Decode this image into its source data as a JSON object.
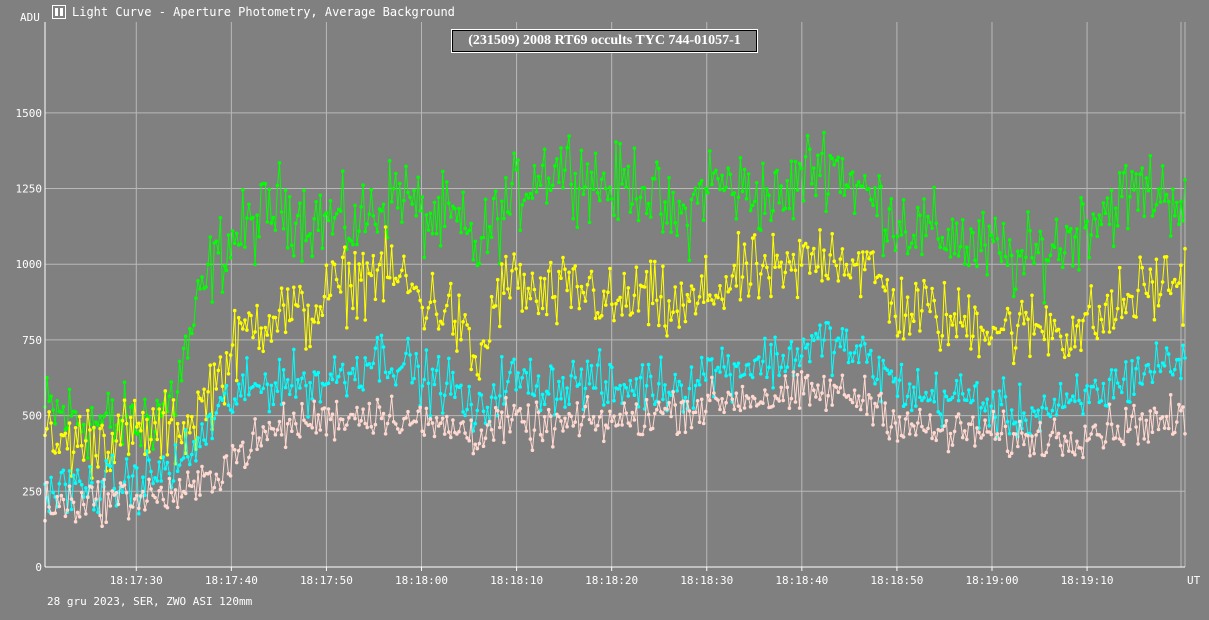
{
  "window": {
    "title": "Light Curve - Aperture Photometry, Average Background",
    "icon": "app-logo-icon"
  },
  "footer": "28 gru 2023, SER, ZWO ASI 120mm",
  "colors": {
    "background": "#808080",
    "grid": "#b8b8b8",
    "axis": "#ffffff",
    "series_green": "#00ff00",
    "series_yellow": "#ffff00",
    "series_cyan": "#00ffff",
    "series_pink": "#ffd8d0"
  },
  "chart_data": {
    "type": "line",
    "title": "(231509) 2008 RT69 occults TYC 744-01057-1",
    "ylabel": "ADU",
    "xlabel": "UT",
    "ylim": [
      0,
      1800
    ],
    "xlim": [
      "18:17:20.4",
      "18:19:20.3"
    ],
    "yticks": [
      0,
      250,
      500,
      750,
      1000,
      1250,
      1500
    ],
    "xticks": [
      "18:17:30",
      "18:17:40",
      "18:17:50",
      "18:18:00",
      "18:18:10",
      "18:18:20",
      "18:18:30",
      "18:18:40",
      "18:18:50",
      "18:19:00",
      "18:19:10"
    ],
    "grid": true,
    "markers": true,
    "series": [
      {
        "color": "#00ff00",
        "x_seconds_after_181720": [
          0,
          5,
          10,
          14,
          16,
          18,
          20,
          22,
          25,
          28,
          30,
          33,
          35,
          38,
          40,
          43,
          46,
          48,
          50,
          52,
          55,
          58,
          60,
          63,
          66,
          68,
          70,
          73,
          76,
          78,
          80,
          83,
          86,
          88,
          90,
          93,
          96,
          98,
          100,
          103,
          106,
          108,
          110,
          113,
          116,
          119.5
        ],
        "values": [
          520,
          480,
          460,
          560,
          800,
          1000,
          1080,
          1120,
          1200,
          1150,
          1150,
          1120,
          1180,
          1250,
          1150,
          1150,
          1050,
          1150,
          1230,
          1300,
          1330,
          1280,
          1250,
          1280,
          1150,
          1150,
          1280,
          1250,
          1230,
          1200,
          1300,
          1350,
          1250,
          1200,
          1150,
          1100,
          1100,
          1050,
          1050,
          1000,
          1050,
          1080,
          1150,
          1200,
          1250,
          1220
        ]
      },
      {
        "color": "#ffff00",
        "x_seconds_after_181720": [
          0,
          5,
          10,
          14,
          16,
          18,
          20,
          22,
          25,
          28,
          30,
          33,
          35,
          38,
          40,
          43,
          46,
          48,
          50,
          52,
          55,
          58,
          60,
          63,
          66,
          68,
          70,
          73,
          76,
          78,
          80,
          83,
          86,
          88,
          90,
          93,
          96,
          98,
          100,
          103,
          106,
          108,
          110,
          113,
          116,
          119.5
        ],
        "values": [
          400,
          420,
          440,
          450,
          480,
          600,
          700,
          800,
          850,
          820,
          900,
          950,
          980,
          950,
          880,
          850,
          650,
          900,
          950,
          880,
          900,
          920,
          850,
          900,
          850,
          850,
          900,
          950,
          980,
          950,
          1000,
          1050,
          1000,
          950,
          850,
          850,
          800,
          820,
          800,
          780,
          800,
          780,
          800,
          850,
          920,
          950
        ]
      },
      {
        "color": "#00ffff",
        "x_seconds_after_181720": [
          0,
          5,
          10,
          14,
          16,
          18,
          20,
          22,
          25,
          28,
          30,
          33,
          35,
          38,
          40,
          43,
          46,
          48,
          50,
          52,
          55,
          58,
          60,
          63,
          66,
          68,
          70,
          73,
          76,
          78,
          80,
          83,
          86,
          88,
          90,
          93,
          96,
          98,
          100,
          103,
          106,
          108,
          110,
          113,
          116,
          119.5
        ],
        "values": [
          250,
          260,
          280,
          330,
          380,
          480,
          560,
          580,
          620,
          600,
          620,
          650,
          700,
          680,
          620,
          600,
          480,
          600,
          620,
          600,
          600,
          620,
          580,
          600,
          600,
          600,
          650,
          660,
          680,
          680,
          720,
          750,
          700,
          650,
          600,
          560,
          560,
          560,
          520,
          500,
          520,
          520,
          560,
          600,
          650,
          680
        ]
      },
      {
        "color": "#ffd8d0",
        "x_seconds_after_181720": [
          0,
          5,
          10,
          14,
          16,
          18,
          20,
          22,
          25,
          28,
          30,
          33,
          35,
          38,
          40,
          43,
          46,
          48,
          50,
          52,
          55,
          58,
          60,
          63,
          66,
          68,
          70,
          73,
          76,
          78,
          80,
          83,
          86,
          88,
          90,
          93,
          96,
          98,
          100,
          103,
          106,
          108,
          110,
          113,
          116,
          119.5
        ],
        "values": [
          200,
          220,
          230,
          240,
          250,
          300,
          360,
          400,
          460,
          480,
          490,
          500,
          510,
          500,
          470,
          460,
          440,
          470,
          480,
          460,
          470,
          480,
          480,
          490,
          520,
          520,
          540,
          560,
          560,
          560,
          570,
          580,
          560,
          540,
          480,
          450,
          440,
          450,
          440,
          420,
          430,
          430,
          450,
          460,
          480,
          480
        ]
      }
    ]
  }
}
